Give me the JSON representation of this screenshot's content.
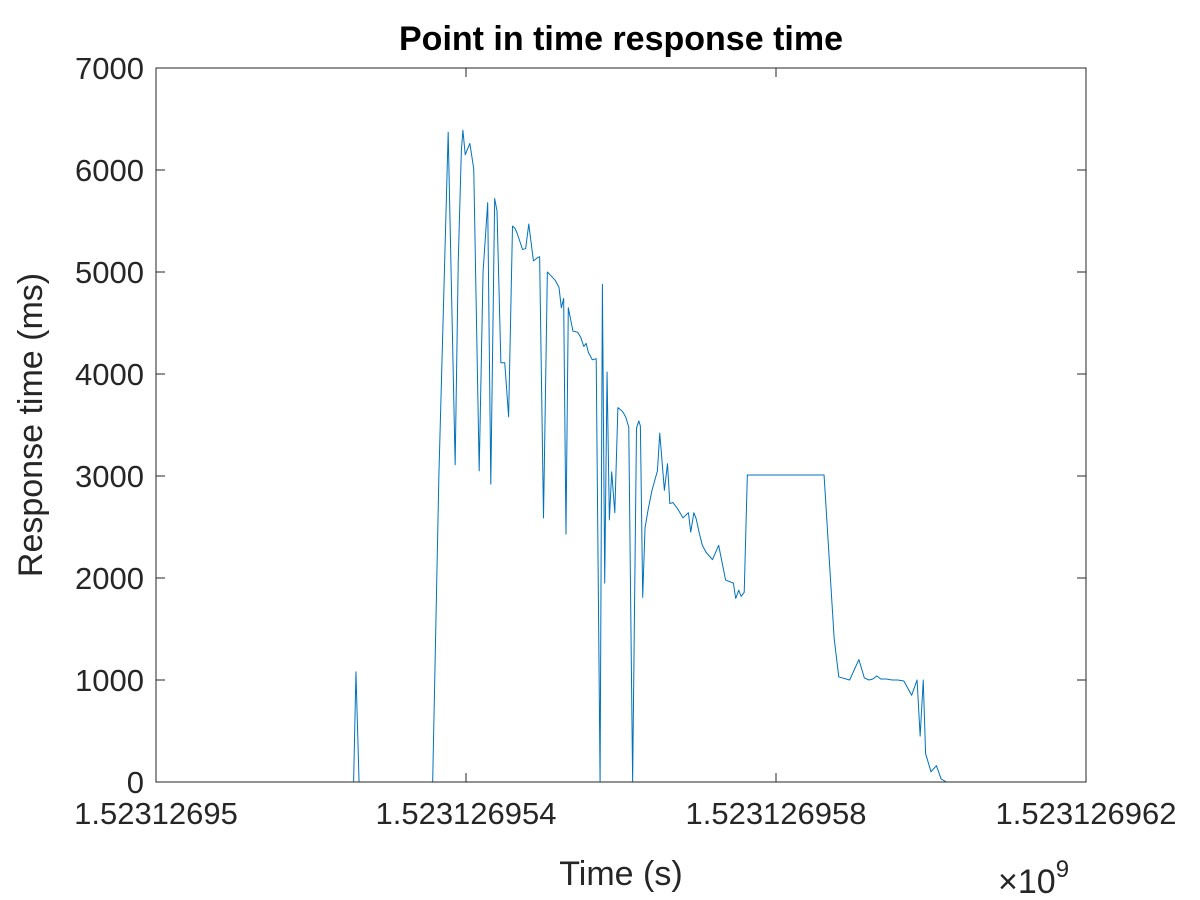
{
  "chart_data": {
    "type": "line",
    "title": "Point in time response time",
    "xlabel": "Time (s)",
    "ylabel": "Response time (ms)",
    "x_exponent_label": "×10",
    "x_exponent_power": "9",
    "xlim": [
      1523126950,
      1523126962
    ],
    "ylim": [
      0,
      7000
    ],
    "x_ticks": [
      1523126950,
      1523126954,
      1523126958,
      1523126962
    ],
    "x_tick_labels": [
      "1.52312695",
      "1.523126954",
      "1.523126958",
      "1.523126962"
    ],
    "y_ticks": [
      0,
      1000,
      2000,
      3000,
      4000,
      5000,
      6000,
      7000
    ],
    "y_tick_labels": [
      "0",
      "1000",
      "2000",
      "3000",
      "4000",
      "5000",
      "6000",
      "7000"
    ],
    "grid": false,
    "legend": "none",
    "series": [
      {
        "color": "#0072BD",
        "x": [
          1523126950.5,
          1523126951.0,
          1523126951.5,
          1523126952.0,
          1523126952.4,
          1523126952.55,
          1523126952.58,
          1523126952.62,
          1523126952.7,
          1523126953.0,
          1523126953.2,
          1523126953.57,
          1523126953.65,
          1523126953.77,
          1523126953.86,
          1523126953.9,
          1523126953.94,
          1523126953.96,
          1523126953.99,
          1523126954.05,
          1523126954.1,
          1523126954.17,
          1523126954.22,
          1523126954.28,
          1523126954.32,
          1523126954.37,
          1523126954.4,
          1523126954.45,
          1523126954.5,
          1523126954.55,
          1523126954.6,
          1523126954.63,
          1523126954.66,
          1523126954.73,
          1523126954.77,
          1523126954.81,
          1523126954.87,
          1523126954.89,
          1523126954.92,
          1523126954.95,
          1523126955.0,
          1523126955.05,
          1523126955.1,
          1523126955.15,
          1523126955.2,
          1523126955.23,
          1523126955.26,
          1523126955.29,
          1523126955.32,
          1523126955.38,
          1523126955.44,
          1523126955.48,
          1523126955.52,
          1523126955.55,
          1523126955.58,
          1523126955.63,
          1523126955.68,
          1523126955.73,
          1523126955.76,
          1523126955.79,
          1523126955.82,
          1523126955.85,
          1523126955.88,
          1523126955.92,
          1523126955.96,
          1523126956.01,
          1523126956.03,
          1523126956.06,
          1523126956.1,
          1523126956.15,
          1523126956.2,
          1523126956.23,
          1523126956.25,
          1523126956.28,
          1523126956.31,
          1523126956.35,
          1523126956.4,
          1523126956.47,
          1523126956.5,
          1523126956.56,
          1523126956.6,
          1523126956.63,
          1523126956.67,
          1523126956.73,
          1523126956.8,
          1523126956.87,
          1523126956.9,
          1523126956.94,
          1523126956.97,
          1523126957.01,
          1523126957.05,
          1523126957.1,
          1523126957.18,
          1523126957.26,
          1523126957.35,
          1523126957.45,
          1523126957.48,
          1523126957.52,
          1523126957.55,
          1523126957.59,
          1523126957.63,
          1523126957.67,
          1523126957.71,
          1523126957.75,
          1523126957.8,
          1523126957.84,
          1523126957.87,
          1523126957.9,
          1523126957.94,
          1523126957.98,
          1523126958.03,
          1523126958.06,
          1523126958.1,
          1523126958.14,
          1523126958.18,
          1523126958.22,
          1523126958.25,
          1523126958.29,
          1523126958.33,
          1523126958.37,
          1523126958.41,
          1523126958.45,
          1523126958.5,
          1523126958.62,
          1523126958.75,
          1523126958.81,
          1523126958.95,
          1523126959.07,
          1523126959.14,
          1523126959.2,
          1523126959.25,
          1523126959.3,
          1523126959.35,
          1523126959.42,
          1523126959.5,
          1523126959.57,
          1523126959.65,
          1523126959.75,
          1523126959.82,
          1523126959.86,
          1523126959.9,
          1523126959.93,
          1523126960.0,
          1523126960.07,
          1523126960.13,
          1523126960.2,
          1523126960.3,
          1523126960.4
        ],
        "y": [
          0,
          0,
          0,
          0,
          0,
          0,
          1080,
          0,
          0,
          0,
          0,
          0,
          3000,
          6370,
          3110,
          5100,
          6190,
          6390,
          6150,
          6260,
          6010,
          3050,
          5000,
          5680,
          2920,
          5720,
          5600,
          4110,
          4110,
          3580,
          5450,
          5430,
          5380,
          5220,
          5230,
          5470,
          5110,
          5120,
          5140,
          5150,
          2590,
          5000,
          4960,
          4920,
          4850,
          4650,
          4740,
          2430,
          4650,
          4420,
          4410,
          4360,
          4270,
          4300,
          4210,
          4140,
          4150,
          0,
          4880,
          1950,
          4020,
          2570,
          3040,
          2640,
          3670,
          3640,
          3620,
          3580,
          3480,
          0,
          3470,
          3540,
          3490,
          1810,
          2490,
          2670,
          2860,
          3050,
          3420,
          2860,
          3120,
          2730,
          2740,
          2680,
          2590,
          2640,
          2450,
          2640,
          2580,
          2440,
          2320,
          2250,
          2180,
          2320,
          1980,
          1950,
          1800,
          1880,
          1820,
          1860,
          3010,
          3010,
          3010,
          3010,
          3010,
          3010,
          3010,
          3010,
          3010,
          3010,
          3010,
          3010,
          3010,
          3010,
          3010,
          3010,
          3010,
          3010,
          3010,
          3010,
          3010,
          3010,
          3010,
          3010,
          1410,
          1030,
          1000,
          1200,
          1020,
          1000,
          1010,
          1040,
          1010,
          1010,
          1000,
          1000,
          990,
          850,
          1000,
          450,
          1000,
          280,
          100,
          160,
          30,
          0,
          0,
          0
        ]
      }
    ]
  }
}
